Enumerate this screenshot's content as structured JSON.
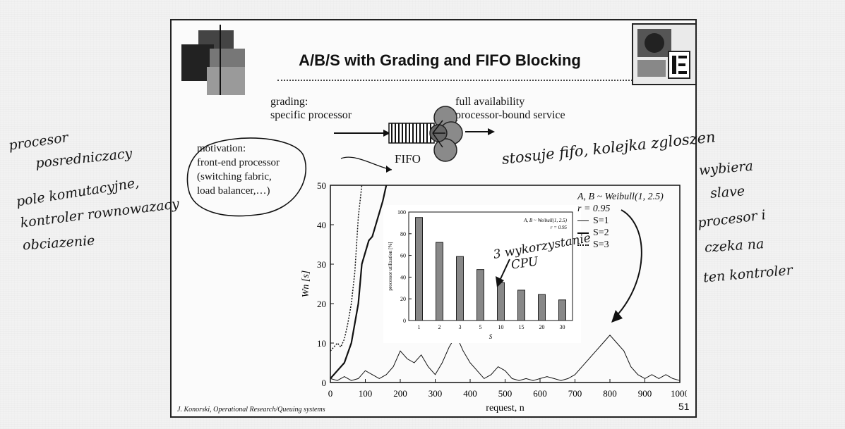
{
  "slide": {
    "title": "A/B/S with Grading and FIFO Blocking",
    "grading_line1": "grading:",
    "grading_line2": "specific processor",
    "full_line1": "full availability",
    "full_line2": "processor-bound service",
    "fifo": "FIFO",
    "motivation": [
      "motivation:",
      "front-end processor",
      "(switching fabric,",
      "load balancer,…)"
    ],
    "footer": "J. Konorski, Operational Research/Queuing systems",
    "page_number": "51",
    "legend_dist": "A, B ~ Weibull(1, 2.5)",
    "legend_r": "r = 0.95",
    "legend_series": [
      "S=1",
      "S=2",
      "S=3"
    ]
  },
  "handwriting": {
    "left_note": [
      "procesor",
      "posredniczacy",
      "pole komutacyjne,",
      "kontroler rownowazacy",
      "obciazenie"
    ],
    "right_note_top": "stosuje fifo, kolejka zgloszen",
    "right_note_rest": [
      "wybiera",
      "slave",
      "procesor i",
      "czeka na",
      "ten kontroler"
    ],
    "inset_note": [
      "3 wykorzystanie",
      "CPU"
    ]
  },
  "chart_data": [
    {
      "type": "line",
      "xlabel": "request, n",
      "ylabel": "Wn [s]",
      "xlim": [
        0,
        1000
      ],
      "ylim": [
        0,
        50
      ],
      "xticks": [
        0,
        100,
        200,
        300,
        400,
        500,
        600,
        700,
        800,
        900,
        1000
      ],
      "yticks": [
        0,
        10,
        20,
        30,
        40,
        50
      ],
      "series": [
        {
          "name": "S=1",
          "x": [
            0,
            20,
            40,
            60,
            80,
            100,
            120,
            140,
            160,
            180,
            200,
            220,
            240,
            260,
            280,
            300,
            320,
            340,
            360,
            380,
            400,
            420,
            440,
            460,
            480,
            500,
            520,
            540,
            560,
            580,
            600,
            620,
            640,
            660,
            680,
            700,
            720,
            740,
            760,
            780,
            800,
            820,
            840,
            860,
            880,
            900,
            920,
            940,
            960,
            980,
            1000
          ],
          "y": [
            1,
            0.5,
            1.5,
            0.5,
            1,
            3,
            2,
            1,
            2,
            4,
            8,
            6,
            5,
            7,
            4,
            2,
            5,
            9,
            12,
            8,
            5,
            3,
            1,
            2,
            4,
            3,
            1,
            0.5,
            1,
            0.5,
            1,
            1.5,
            1,
            0.5,
            1,
            2,
            4,
            6,
            8,
            10,
            12,
            10,
            8,
            4,
            2,
            1,
            2,
            1,
            2,
            1,
            0.5
          ]
        },
        {
          "name": "S=2",
          "x": [
            0,
            20,
            40,
            60,
            80,
            90,
            100,
            110,
            120,
            130,
            140,
            150,
            160
          ],
          "y": [
            1,
            3,
            5,
            10,
            20,
            30,
            33,
            36,
            37,
            40,
            43,
            46,
            50
          ]
        },
        {
          "name": "S=3",
          "x": [
            0,
            10,
            20,
            30,
            40,
            50,
            60,
            70,
            80,
            90
          ],
          "y": [
            8,
            9,
            10,
            9,
            11,
            15,
            20,
            28,
            42,
            50
          ]
        }
      ]
    },
    {
      "type": "bar",
      "title": "A, B ~ Weibull(1, 2.5)\nr = 0.95",
      "xlabel": "S",
      "ylabel": "processor utilization [%]",
      "categories": [
        "1",
        "2",
        "3",
        "5",
        "10",
        "15",
        "20",
        "30"
      ],
      "values": [
        95,
        72,
        59,
        47,
        35,
        28,
        24,
        19
      ],
      "ylim": [
        0,
        100
      ],
      "yticks": [
        0,
        20,
        40,
        60,
        80,
        100
      ]
    }
  ]
}
